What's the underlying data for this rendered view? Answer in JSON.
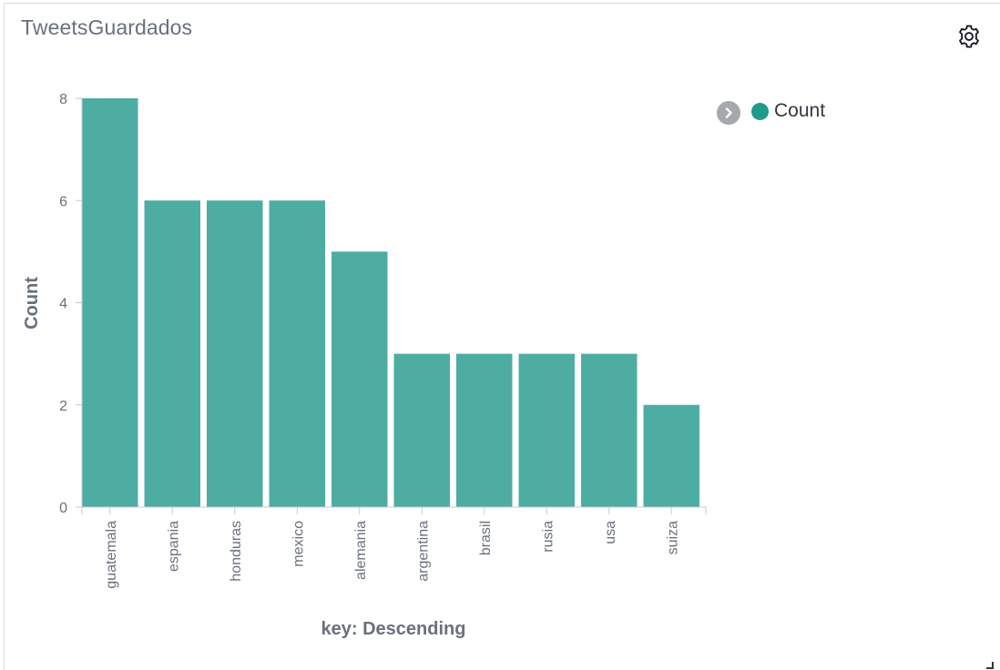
{
  "panel": {
    "title": "TweetsGuardados"
  },
  "icons": {
    "settings": "gear-icon",
    "legend_toggle": "chevron-right-icon",
    "resize": "resize-handle-icon"
  },
  "colors": {
    "bar": "#4dada3",
    "legend_dot": "#1f9a8b",
    "axis": "#c4c8d0",
    "text": "#69707d"
  },
  "legend": {
    "items": [
      {
        "label": "Count"
      }
    ],
    "placement": "top-right"
  },
  "chart_data": {
    "type": "bar",
    "categories": [
      "guatemala",
      "espania",
      "honduras",
      "mexico",
      "alemania",
      "argentina",
      "brasil",
      "rusia",
      "usa",
      "suiza"
    ],
    "series": [
      {
        "name": "Count",
        "values": [
          8,
          6,
          6,
          6,
          5,
          3,
          3,
          3,
          3,
          2
        ]
      }
    ],
    "xlabel": "key: Descending",
    "ylabel": "Count",
    "ylim": [
      0,
      8
    ],
    "yticks": [
      0,
      2,
      4,
      6,
      8
    ],
    "grid": false
  }
}
